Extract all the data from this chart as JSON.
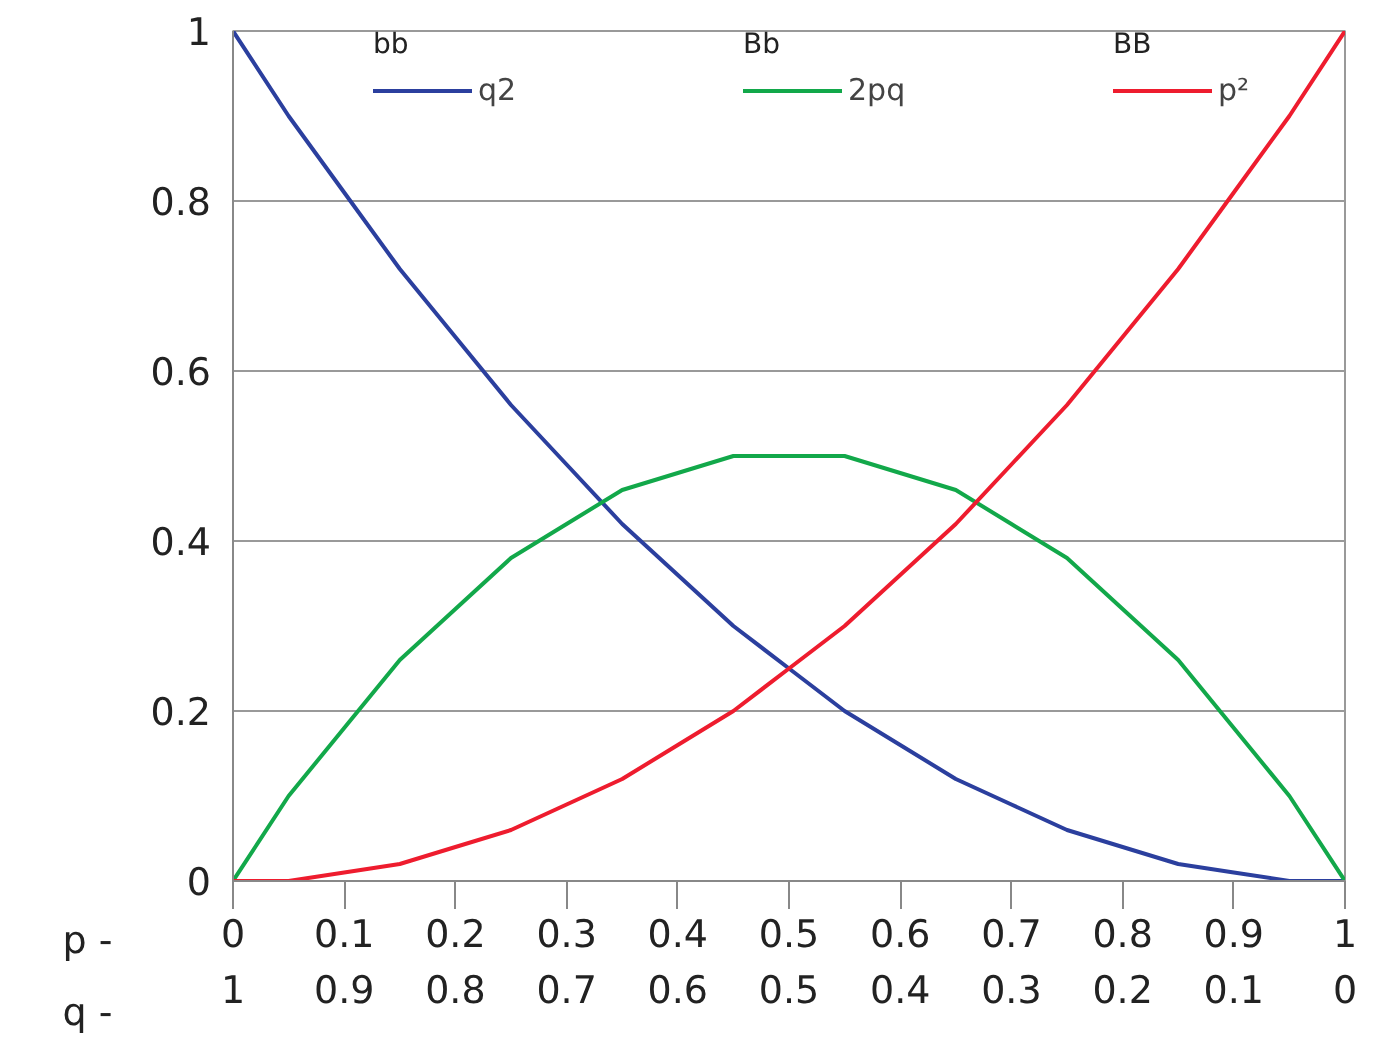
{
  "chart_data": {
    "type": "line",
    "xlabel": "p -",
    "x2label": "q -",
    "x": [
      0,
      0.05,
      0.1,
      0.15,
      0.2,
      0.25,
      0.3,
      0.35,
      0.4,
      0.45,
      0.5,
      0.55,
      0.6,
      0.65,
      0.7,
      0.75,
      0.8,
      0.85,
      0.9,
      0.95,
      1
    ],
    "series": [
      {
        "name": "q2",
        "color": "#2b3f9e",
        "values": [
          1,
          0.9,
          0.81,
          0.72,
          0.64,
          0.56,
          0.49,
          0.42,
          0.36,
          0.3,
          0.25,
          0.2,
          0.16,
          0.12,
          0.09,
          0.06,
          0.04,
          0.02,
          0.01,
          0,
          0
        ]
      },
      {
        "name": "2pq",
        "color": "#12a84a",
        "values": [
          0,
          0.1,
          0.18,
          0.26,
          0.32,
          0.38,
          0.42,
          0.46,
          0.48,
          0.5,
          0.5,
          0.5,
          0.48,
          0.46,
          0.42,
          0.38,
          0.32,
          0.26,
          0.18,
          0.1,
          0
        ]
      },
      {
        "name": "p²",
        "color": "#ee1c2e",
        "values": [
          0,
          0,
          0.01,
          0.02,
          0.04,
          0.06,
          0.09,
          0.12,
          0.16,
          0.2,
          0.25,
          0.3,
          0.36,
          0.42,
          0.49,
          0.56,
          0.64,
          0.72,
          0.81,
          0.9,
          1
        ]
      }
    ],
    "annotations": [
      "bb",
      "Bb",
      "BB"
    ],
    "xlim": [
      0,
      1
    ],
    "xticks": [
      0,
      0.1,
      0.2,
      0.3,
      0.4,
      0.5,
      0.6,
      0.7,
      0.8,
      0.9,
      1
    ],
    "x2lim": [
      1,
      0
    ],
    "x2ticks": [
      1,
      0.9,
      0.8,
      0.7,
      0.6,
      0.5,
      0.4,
      0.3,
      0.2,
      0.1,
      0
    ],
    "ylim": [
      0,
      1
    ],
    "yticks": [
      0,
      0.2,
      0.4,
      0.6,
      0.8,
      1
    ],
    "grid": "y",
    "legend": "top",
    "marker": "none",
    "line_style": "solid"
  }
}
